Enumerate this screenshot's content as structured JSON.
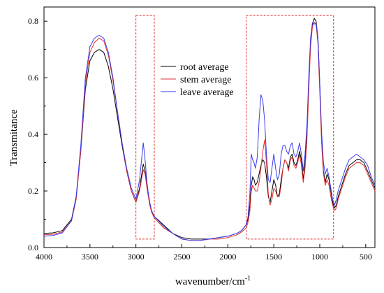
{
  "chart_data": {
    "type": "line",
    "title": "",
    "xlabel": "wavenumber/cm",
    "xlabel_sup": "-1",
    "ylabel": "Transmitance",
    "xlim": [
      4000,
      400
    ],
    "ylim": [
      0.0,
      0.85
    ],
    "x_reversed": true,
    "xticks": [
      4000,
      3500,
      3000,
      2500,
      2000,
      1500,
      1000,
      500
    ],
    "yticks": [
      0.0,
      0.2,
      0.4,
      0.6,
      0.8
    ],
    "ytick_labels": [
      "0.0",
      "0.2",
      "0.4",
      "0.6",
      "0.8"
    ],
    "grid": false,
    "legend_position": "top-center",
    "x": [
      4000,
      3900,
      3800,
      3700,
      3650,
      3600,
      3550,
      3500,
      3450,
      3400,
      3350,
      3300,
      3250,
      3200,
      3150,
      3100,
      3050,
      3000,
      2960,
      2920,
      2900,
      2880,
      2860,
      2850,
      2830,
      2800,
      2700,
      2600,
      2500,
      2400,
      2300,
      2200,
      2100,
      2000,
      1950,
      1900,
      1850,
      1800,
      1780,
      1760,
      1745,
      1730,
      1715,
      1700,
      1680,
      1660,
      1640,
      1620,
      1600,
      1580,
      1560,
      1540,
      1520,
      1500,
      1480,
      1460,
      1440,
      1420,
      1400,
      1380,
      1360,
      1340,
      1320,
      1300,
      1280,
      1260,
      1240,
      1220,
      1200,
      1180,
      1160,
      1140,
      1120,
      1100,
      1080,
      1060,
      1040,
      1020,
      1000,
      980,
      960,
      940,
      920,
      900,
      880,
      860,
      840,
      820,
      800,
      760,
      720,
      680,
      640,
      600,
      560,
      520,
      480,
      440,
      400
    ],
    "series": [
      {
        "name": "root average",
        "color": "#000000",
        "values": [
          0.05,
          0.052,
          0.06,
          0.1,
          0.18,
          0.34,
          0.56,
          0.66,
          0.69,
          0.7,
          0.69,
          0.64,
          0.56,
          0.46,
          0.36,
          0.27,
          0.2,
          0.16,
          0.21,
          0.295,
          0.27,
          0.22,
          0.18,
          0.16,
          0.13,
          0.11,
          0.08,
          0.05,
          0.035,
          0.03,
          0.03,
          0.03,
          0.035,
          0.04,
          0.045,
          0.05,
          0.06,
          0.08,
          0.1,
          0.15,
          0.22,
          0.25,
          0.24,
          0.22,
          0.23,
          0.26,
          0.29,
          0.31,
          0.3,
          0.25,
          0.18,
          0.16,
          0.2,
          0.24,
          0.22,
          0.18,
          0.19,
          0.24,
          0.28,
          0.31,
          0.3,
          0.28,
          0.32,
          0.33,
          0.3,
          0.29,
          0.31,
          0.34,
          0.31,
          0.24,
          0.3,
          0.4,
          0.58,
          0.72,
          0.79,
          0.81,
          0.8,
          0.74,
          0.58,
          0.38,
          0.27,
          0.23,
          0.26,
          0.24,
          0.2,
          0.16,
          0.14,
          0.15,
          0.18,
          0.22,
          0.26,
          0.29,
          0.3,
          0.31,
          0.31,
          0.3,
          0.27,
          0.24,
          0.21
        ]
      },
      {
        "name": "stem average",
        "color": "#e03030",
        "values": [
          0.045,
          0.047,
          0.055,
          0.095,
          0.17,
          0.34,
          0.58,
          0.69,
          0.725,
          0.74,
          0.73,
          0.68,
          0.59,
          0.48,
          0.37,
          0.27,
          0.2,
          0.16,
          0.2,
          0.275,
          0.26,
          0.21,
          0.17,
          0.15,
          0.125,
          0.105,
          0.07,
          0.05,
          0.03,
          0.025,
          0.025,
          0.03,
          0.03,
          0.035,
          0.04,
          0.045,
          0.055,
          0.07,
          0.09,
          0.13,
          0.2,
          0.22,
          0.21,
          0.2,
          0.2,
          0.23,
          0.28,
          0.34,
          0.38,
          0.3,
          0.19,
          0.15,
          0.17,
          0.21,
          0.2,
          0.18,
          0.18,
          0.22,
          0.28,
          0.31,
          0.3,
          0.27,
          0.31,
          0.32,
          0.29,
          0.28,
          0.3,
          0.33,
          0.29,
          0.23,
          0.28,
          0.38,
          0.55,
          0.71,
          0.78,
          0.795,
          0.79,
          0.72,
          0.55,
          0.37,
          0.26,
          0.22,
          0.24,
          0.22,
          0.18,
          0.15,
          0.13,
          0.14,
          0.17,
          0.21,
          0.25,
          0.28,
          0.29,
          0.3,
          0.3,
          0.29,
          0.26,
          0.23,
          0.2
        ]
      },
      {
        "name": "leave average",
        "color": "#3a3aee",
        "values": [
          0.04,
          0.043,
          0.052,
          0.095,
          0.18,
          0.36,
          0.6,
          0.71,
          0.74,
          0.75,
          0.74,
          0.69,
          0.6,
          0.48,
          0.37,
          0.28,
          0.21,
          0.17,
          0.24,
          0.37,
          0.31,
          0.23,
          0.18,
          0.16,
          0.13,
          0.11,
          0.075,
          0.05,
          0.03,
          0.025,
          0.025,
          0.03,
          0.035,
          0.04,
          0.045,
          0.05,
          0.06,
          0.08,
          0.11,
          0.19,
          0.33,
          0.31,
          0.3,
          0.28,
          0.32,
          0.45,
          0.54,
          0.52,
          0.45,
          0.33,
          0.24,
          0.23,
          0.28,
          0.33,
          0.28,
          0.24,
          0.26,
          0.33,
          0.36,
          0.36,
          0.34,
          0.33,
          0.36,
          0.37,
          0.33,
          0.32,
          0.34,
          0.37,
          0.33,
          0.27,
          0.33,
          0.43,
          0.6,
          0.74,
          0.795,
          0.79,
          0.79,
          0.74,
          0.58,
          0.41,
          0.3,
          0.26,
          0.28,
          0.25,
          0.21,
          0.17,
          0.15,
          0.17,
          0.2,
          0.24,
          0.28,
          0.31,
          0.32,
          0.33,
          0.32,
          0.31,
          0.29,
          0.25,
          0.22
        ]
      }
    ],
    "highlight_regions": [
      {
        "x_from": 3000,
        "x_to": 2800,
        "y_from": 0.03,
        "y_to": 0.82,
        "color": "#e03030"
      },
      {
        "x_from": 1800,
        "x_to": 850,
        "y_from": 0.03,
        "y_to": 0.82,
        "color": "#e03030"
      }
    ]
  }
}
